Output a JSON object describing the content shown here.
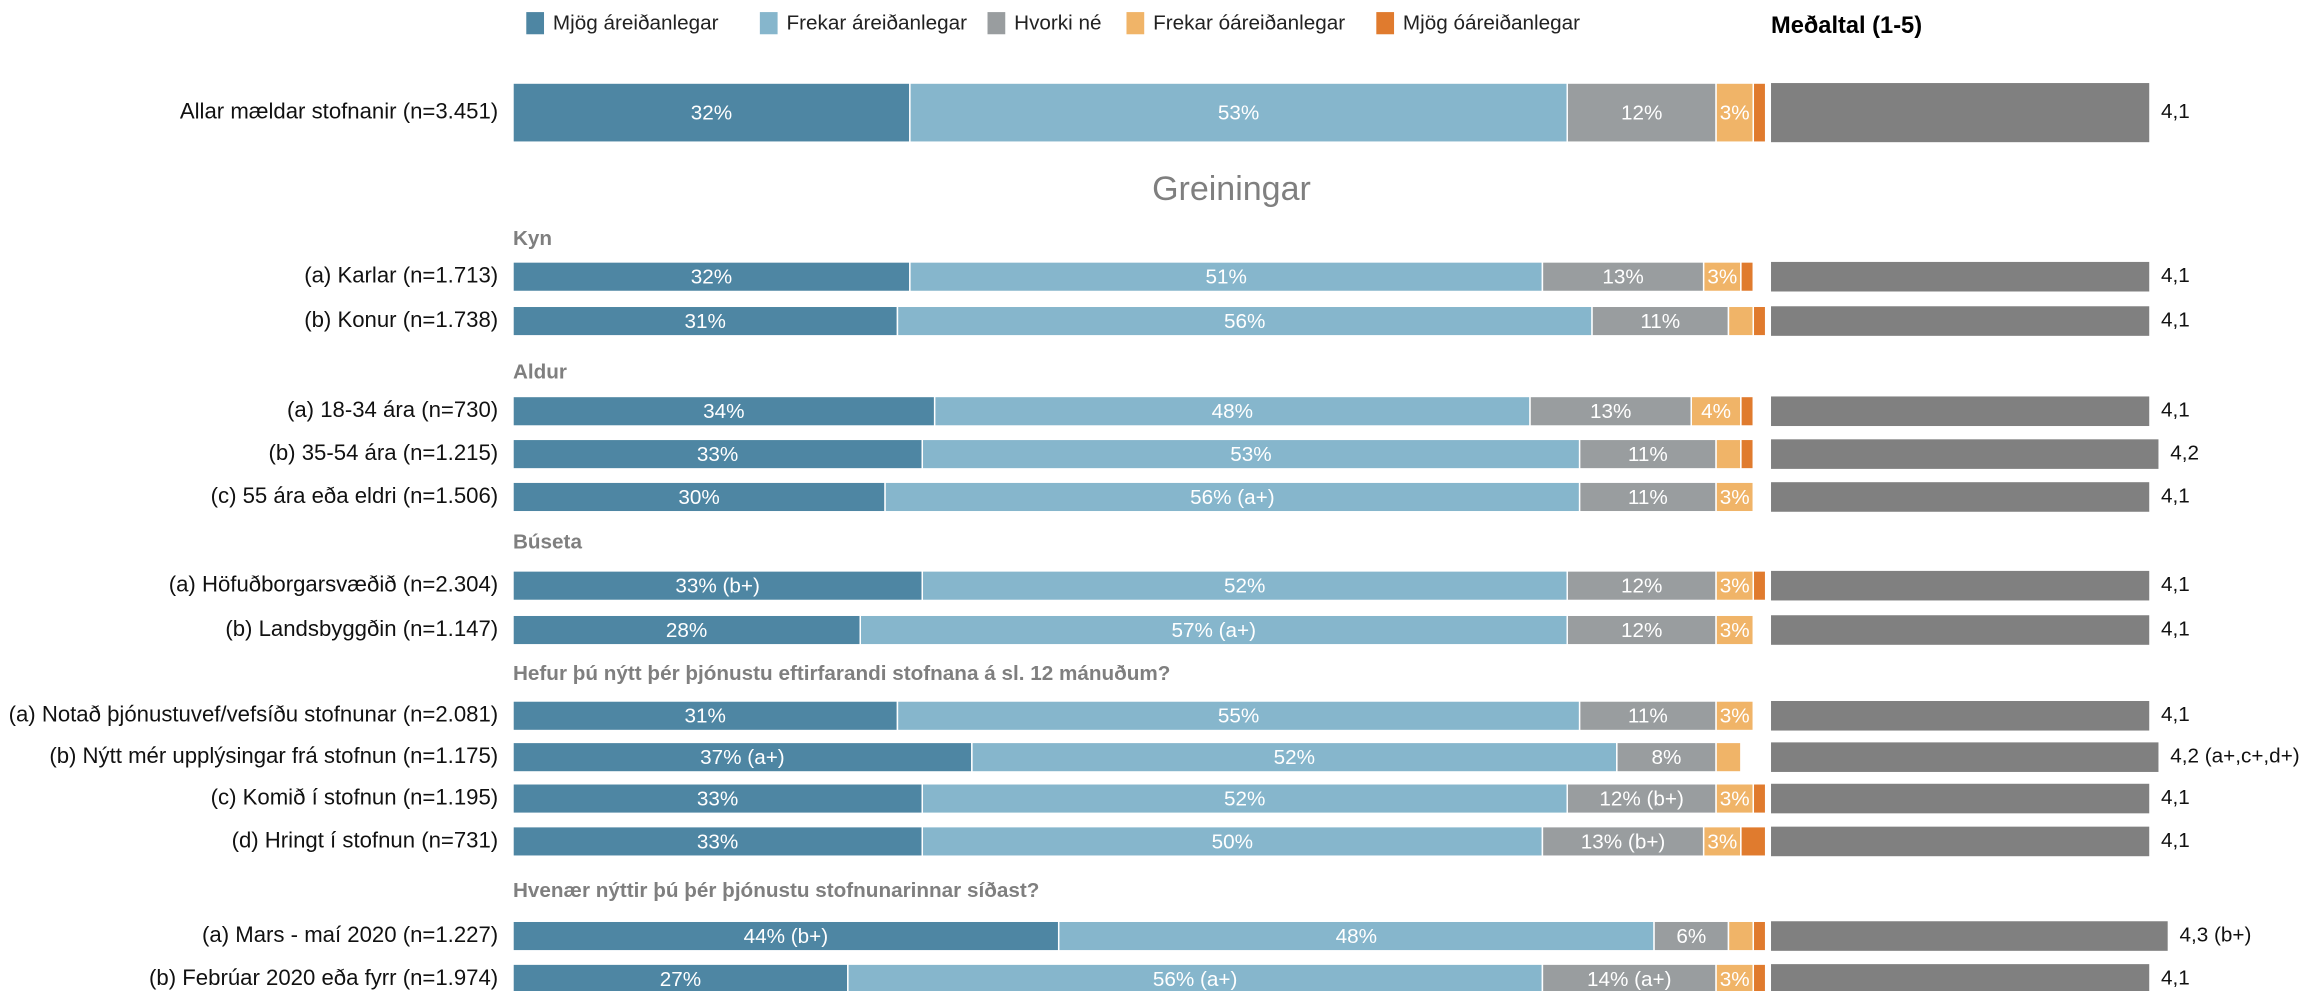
{
  "chart_data": {
    "type": "stacked_bar",
    "title": "Greiningar",
    "mean_title": "Meðaltal (1-5)",
    "categories": [
      "Allar mældar stofnanir (n=3.451)",
      "(a) Karlar (n=1.713)",
      "(b) Konur (n=1.738)",
      "(a) 18-34 ára (n=730)",
      "(b) 35-54 ára (n=1.215)",
      "(c) 55 ára eða eldri (n=1.506)",
      "(a) Höfuðborgarsvæðið (n=2.304)",
      "(b) Landsbyggðin (n=1.147)",
      "(a) Notað þjónustuvef/vefsíðu stofnunar (n=2.081)",
      "(b) Nýtt mér upplýsingar frá stofnun (n=1.175)",
      "(c) Komið í stofnun (n=1.195)",
      "(d) Hringt í stofnun (n=731)",
      "(a) Mars - maí 2020 (n=1.227)",
      "(b) Febrúar 2020 eða fyrr (n=1.974)"
    ],
    "groups": [
      "Kyn",
      "Aldur",
      "Búseta",
      "Hefur þú nýtt þér þjónustu eftirfarandi stofnana á sl. 12 mánuðum?",
      "Hvenær nýttir þú þér þjónustu stofnunarinnar síðast?"
    ],
    "xlim": [
      0,
      100
    ],
    "series": [
      {
        "name": "Mjög áreiðanlegar",
        "color": "#4e86a3",
        "values": [
          32,
          32,
          31,
          34,
          33,
          30,
          33,
          28,
          31,
          37,
          33,
          33,
          44,
          27
        ],
        "value_labels": [
          "32%",
          "32%",
          "31%",
          "34%",
          "33%",
          "30%",
          "33% (b+)",
          "28%",
          "31%",
          "37% (a+)",
          "33%",
          "33%",
          "44% (b+)",
          "27%"
        ]
      },
      {
        "name": "Frekar áreiðanlegar",
        "color": "#86b6cc",
        "values": [
          53,
          51,
          56,
          48,
          53,
          56,
          52,
          57,
          55,
          52,
          52,
          50,
          48,
          56
        ],
        "value_labels": [
          "53%",
          "51%",
          "56%",
          "48%",
          "53%",
          "56% (a+)",
          "52%",
          "57% (a+)",
          "55%",
          "52%",
          "52%",
          "50%",
          "48%",
          "56% (a+)"
        ]
      },
      {
        "name": "Hvorki né",
        "color": "#999d9f",
        "values": [
          12,
          13,
          11,
          13,
          11,
          11,
          12,
          12,
          11,
          8,
          12,
          13,
          6,
          14
        ],
        "value_labels": [
          "12%",
          "13%",
          "11%",
          "13%",
          "11%",
          "11%",
          "12%",
          "12%",
          "11%",
          "8%",
          "12% (b+)",
          "13% (b+)",
          "6%",
          "14% (a+)"
        ]
      },
      {
        "name": "Frekar óáreiðanlegar",
        "color": "#f0b468",
        "values": [
          3,
          3,
          2,
          4,
          2,
          3,
          3,
          3,
          3,
          2,
          3,
          3,
          2,
          3
        ],
        "value_labels": [
          "3%",
          "3%",
          null,
          "4%",
          null,
          "3%",
          "3%",
          "3%",
          "3%",
          null,
          "3%",
          "3%",
          null,
          "3%"
        ]
      },
      {
        "name": "Mjög óáreiðanlegar",
        "color": "#e07b2e",
        "values": [
          1,
          1,
          1,
          1,
          1,
          0,
          1,
          0,
          0,
          0,
          1,
          2,
          1,
          1
        ],
        "value_labels": [
          null,
          null,
          null,
          null,
          null,
          null,
          null,
          null,
          null,
          null,
          null,
          null,
          null,
          null
        ]
      }
    ],
    "mean": {
      "color": "#808080",
      "xlim": [
        0,
        5
      ],
      "values": [
        4.1,
        4.1,
        4.1,
        4.1,
        4.2,
        4.1,
        4.1,
        4.1,
        4.1,
        4.2,
        4.1,
        4.1,
        4.3,
        4.1
      ],
      "value_labels": [
        "4,1",
        "4,1",
        "4,1",
        "4,1",
        "4,2",
        "4,1",
        "4,1",
        "4,1",
        "4,1",
        "4,2 (a+,c+,d+)",
        "4,1",
        "4,1",
        "4,3 (b+)",
        "4,1"
      ]
    }
  }
}
